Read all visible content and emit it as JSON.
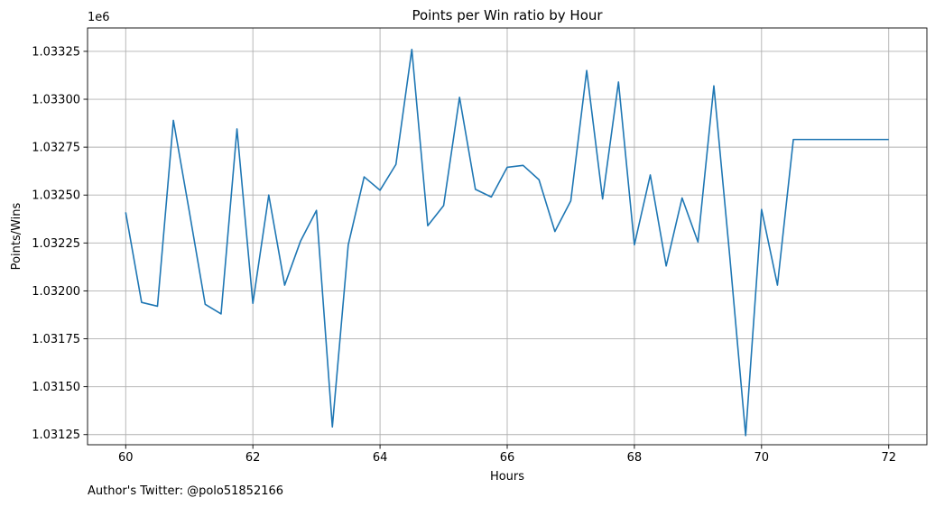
{
  "chart_data": {
    "type": "line",
    "title": "Points per Win ratio by Hour",
    "xlabel": "Hours",
    "ylabel": "Points/Wins",
    "offset_label": "1e6",
    "xlim": [
      59.4,
      72.6
    ],
    "ylim": [
      1031197,
      1033372
    ],
    "grid": true,
    "x_ticks": [
      {
        "value": 60,
        "label": "60"
      },
      {
        "value": 62,
        "label": "62"
      },
      {
        "value": 64,
        "label": "64"
      },
      {
        "value": 66,
        "label": "66"
      },
      {
        "value": 68,
        "label": "68"
      },
      {
        "value": 70,
        "label": "70"
      },
      {
        "value": 72,
        "label": "72"
      }
    ],
    "y_ticks": [
      {
        "value": 1031250,
        "label": "1.03125"
      },
      {
        "value": 1031500,
        "label": "1.03150"
      },
      {
        "value": 1031750,
        "label": "1.03175"
      },
      {
        "value": 1032000,
        "label": "1.03200"
      },
      {
        "value": 1032250,
        "label": "1.03225"
      },
      {
        "value": 1032500,
        "label": "1.03250"
      },
      {
        "value": 1032750,
        "label": "1.03275"
      },
      {
        "value": 1033000,
        "label": "1.03300"
      },
      {
        "value": 1033250,
        "label": "1.03325"
      }
    ],
    "series": [
      {
        "color": "#1f77b4",
        "x": [
          60,
          60.25,
          60.5,
          60.75,
          61,
          61.25,
          61.5,
          61.75,
          62,
          62.25,
          62.5,
          62.75,
          63,
          63.25,
          63.5,
          63.75,
          64,
          64.25,
          64.5,
          64.75,
          65,
          65.25,
          65.5,
          65.75,
          66,
          66.25,
          66.5,
          66.75,
          67,
          67.25,
          67.5,
          67.75,
          68,
          68.25,
          68.5,
          68.75,
          69,
          69.25,
          69.5,
          69.75,
          70,
          70.25,
          70.5,
          70.75,
          71,
          71.25,
          71.5,
          71.75,
          72
        ],
        "y": [
          1032410,
          1031940,
          1031920,
          1032890,
          1032415,
          1031930,
          1031880,
          1032845,
          1031935,
          1032500,
          1032030,
          1032260,
          1032420,
          1031290,
          1032240,
          1032595,
          1032525,
          1032660,
          1033260,
          1032340,
          1032445,
          1033010,
          1032530,
          1032490,
          1032645,
          1032655,
          1032580,
          1032310,
          1032470,
          1033150,
          1032480,
          1033090,
          1032240,
          1032605,
          1032130,
          1032485,
          1032255,
          1033070,
          1032180,
          1031245,
          1032425,
          1032030,
          1032790,
          1032790,
          1032790,
          1032790,
          1032790,
          1032790,
          1032790
        ]
      }
    ]
  },
  "footer": {
    "text": "Author's Twitter: @polo51852166"
  }
}
